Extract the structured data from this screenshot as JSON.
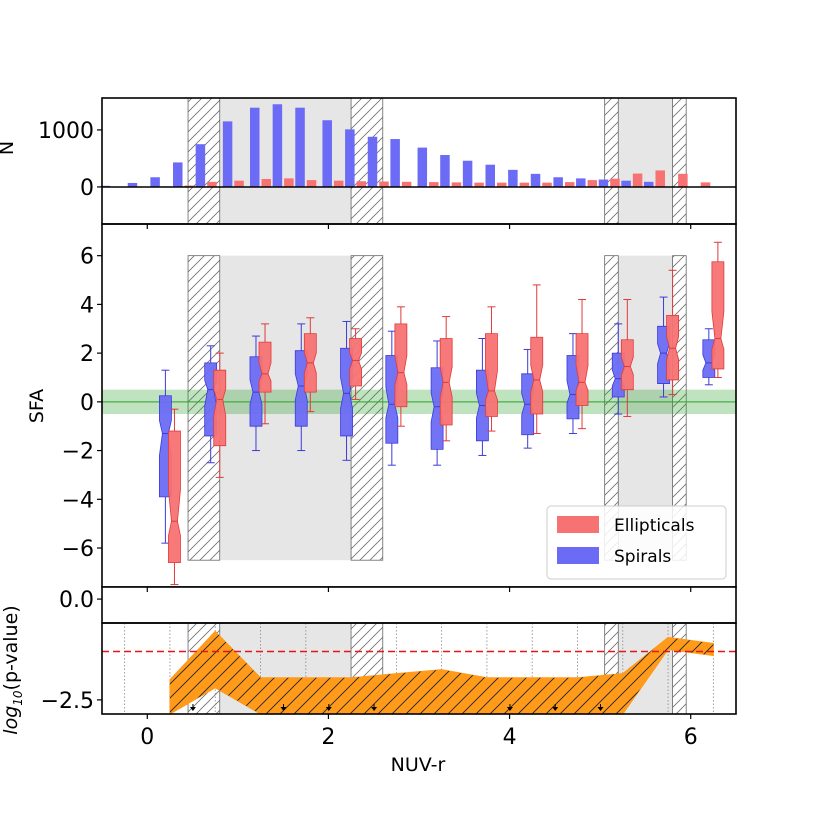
{
  "chart_data": [
    {
      "type": "bar",
      "panel": "top",
      "ylabel": "N",
      "ylim": [
        -650,
        1560
      ],
      "yticks": [
        "0",
        "1000"
      ],
      "x": [
        -0.4,
        -0.1,
        0.15,
        0.4,
        0.65,
        0.95,
        1.25,
        1.5,
        1.75,
        2.05,
        2.3,
        2.55,
        2.8,
        3.1,
        3.35,
        3.6,
        3.85,
        4.1,
        4.35,
        4.6,
        4.85,
        5.1,
        5.35,
        5.6,
        5.85,
        6.1
      ],
      "series": [
        {
          "name": "Spirals",
          "values": [
            20,
            70,
            170,
            430,
            750,
            1150,
            1390,
            1450,
            1390,
            1170,
            1010,
            880,
            840,
            690,
            560,
            460,
            390,
            300,
            230,
            170,
            150,
            130,
            110,
            90,
            0,
            0
          ]
        },
        {
          "name": "Ellipticals",
          "values": [
            0,
            0,
            10,
            25,
            90,
            110,
            140,
            150,
            120,
            110,
            100,
            95,
            90,
            85,
            80,
            75,
            75,
            75,
            75,
            85,
            120,
            145,
            235,
            290,
            230,
            80
          ]
        }
      ]
    },
    {
      "type": "box",
      "panel": "middle",
      "xlabel": "",
      "ylabel": "SFA",
      "ylim": [
        -7.6,
        7.3
      ],
      "yticks": [
        "6",
        "4",
        "2",
        "0",
        "−2",
        "−4",
        "−6"
      ],
      "band": {
        "center": 0,
        "halfwidth": 0.5,
        "color": "#2ca02c"
      },
      "series": [
        {
          "name": "Spirals",
          "color": "#6b6bf5",
          "boxes": [
            {
              "x": 0.2,
              "whislo": -5.8,
              "q1": -3.9,
              "med": -1.3,
              "q3": 0.25,
              "whishi": 1.3
            },
            {
              "x": 0.7,
              "whislo": -2.5,
              "q1": -1.4,
              "med": 0.5,
              "q3": 1.6,
              "whishi": 2.3
            },
            {
              "x": 1.2,
              "whislo": -2.0,
              "q1": -1.0,
              "med": 0.4,
              "q3": 1.85,
              "whishi": 2.7
            },
            {
              "x": 1.7,
              "whislo": -2.0,
              "q1": -1.0,
              "med": 0.65,
              "q3": 2.1,
              "whishi": 3.2
            },
            {
              "x": 2.2,
              "whislo": -2.4,
              "q1": -1.4,
              "med": 0.35,
              "q3": 2.2,
              "whishi": 3.3
            },
            {
              "x": 2.7,
              "whislo": -2.6,
              "q1": -1.7,
              "med": -0.1,
              "q3": 1.9,
              "whishi": 2.9
            },
            {
              "x": 3.2,
              "whislo": -2.6,
              "q1": -1.95,
              "med": -0.2,
              "q3": 1.4,
              "whishi": 2.5
            },
            {
              "x": 3.7,
              "whislo": -2.2,
              "q1": -1.6,
              "med": -0.15,
              "q3": 1.3,
              "whishi": 2.6
            },
            {
              "x": 4.2,
              "whislo": -1.9,
              "q1": -1.35,
              "med": -0.1,
              "q3": 1.15,
              "whishi": 2.15
            },
            {
              "x": 4.7,
              "whislo": -1.3,
              "q1": -0.7,
              "med": 0.3,
              "q3": 1.9,
              "whishi": 2.8
            },
            {
              "x": 5.2,
              "whislo": -0.5,
              "q1": 0.2,
              "med": 0.95,
              "q3": 2.0,
              "whishi": 3.2
            },
            {
              "x": 5.7,
              "whislo": 0.2,
              "q1": 0.75,
              "med": 2.0,
              "q3": 3.1,
              "whishi": 4.3
            },
            {
              "x": 6.2,
              "whislo": 0.7,
              "q1": 1.0,
              "med": 1.6,
              "q3": 2.55,
              "whishi": 3.0
            }
          ]
        },
        {
          "name": "Ellipticals",
          "color": "#f77272",
          "boxes": [
            {
              "x": 0.3,
              "whislo": -7.5,
              "q1": -6.6,
              "med": -4.9,
              "q3": -1.2,
              "whishi": -0.3
            },
            {
              "x": 0.8,
              "whislo": -3.1,
              "q1": -1.8,
              "med": 0.1,
              "q3": 1.3,
              "whishi": 2.0
            },
            {
              "x": 1.3,
              "whislo": -0.9,
              "q1": 0.4,
              "med": 1.15,
              "q3": 2.45,
              "whishi": 3.2
            },
            {
              "x": 1.8,
              "whislo": -0.4,
              "q1": 0.4,
              "med": 1.6,
              "q3": 2.8,
              "whishi": 3.45
            },
            {
              "x": 2.3,
              "whislo": 0.1,
              "q1": 0.65,
              "med": 1.7,
              "q3": 2.6,
              "whishi": 3.0
            },
            {
              "x": 2.8,
              "whislo": -1.0,
              "q1": -0.2,
              "med": 1.2,
              "q3": 3.2,
              "whishi": 3.9
            },
            {
              "x": 3.3,
              "whislo": -1.6,
              "q1": -0.95,
              "med": 0.8,
              "q3": 2.6,
              "whishi": 3.5
            },
            {
              "x": 3.8,
              "whislo": -1.2,
              "q1": -0.6,
              "med": 0.45,
              "q3": 2.8,
              "whishi": 3.9
            },
            {
              "x": 4.3,
              "whislo": -1.3,
              "q1": -0.5,
              "med": 0.9,
              "q3": 2.65,
              "whishi": 4.8
            },
            {
              "x": 4.8,
              "whislo": -1.1,
              "q1": -0.15,
              "med": 0.8,
              "q3": 2.8,
              "whishi": 4.2
            },
            {
              "x": 5.3,
              "whislo": -0.6,
              "q1": 0.5,
              "med": 1.45,
              "q3": 2.55,
              "whishi": 4.2
            },
            {
              "x": 5.8,
              "whislo": 0.3,
              "q1": 0.9,
              "med": 2.2,
              "q3": 3.55,
              "whishi": 5.4
            },
            {
              "x": 6.3,
              "whislo": 1.0,
              "q1": 1.35,
              "med": 2.6,
              "q3": 5.75,
              "whishi": 6.55
            }
          ]
        }
      ],
      "legend": {
        "position": "lower-right",
        "entries": [
          "Ellipticals",
          "Spirals"
        ]
      }
    },
    {
      "type": "area",
      "panel": "bottom",
      "xlabel": "NUV-r",
      "ylabel": "log10(p-value)",
      "ylabel_base": "log",
      "ylabel_sub": "10",
      "ylabel_rest": "(p-value)",
      "ylim": [
        -2.85,
        0.3
      ],
      "yticks": [
        "0.0",
        "−2.5"
      ],
      "threshold": -1.3,
      "x": [
        0.25,
        0.75,
        1.25,
        1.75,
        2.25,
        2.75,
        3.25,
        3.75,
        4.25,
        4.75,
        5.25,
        5.75,
        6.25
      ],
      "upper": [
        -2.0,
        -0.8,
        -1.95,
        -1.95,
        -1.95,
        -1.85,
        -1.75,
        -1.95,
        -1.95,
        -1.95,
        -1.85,
        -0.95,
        -1.1
      ],
      "lower": [
        -2.85,
        -2.2,
        -2.85,
        -2.85,
        -2.85,
        -2.85,
        -2.85,
        -2.85,
        -2.85,
        -2.85,
        -2.85,
        -1.25,
        -1.4
      ],
      "upper_limit_x": [
        0.25,
        1.25,
        1.75,
        2.25,
        3.75,
        4.25,
        4.75
      ],
      "xlim": [
        -0.5,
        6.5
      ],
      "xticks": [
        "0",
        "2",
        "4",
        "6"
      ]
    },
    {
      "type": "shaded_regions",
      "x_ranges": [
        {
          "hatch": [
            0.45,
            0.8
          ],
          "solid": [
            0.8,
            2.25
          ],
          "hatch_right": [
            2.25,
            2.6
          ]
        },
        {
          "hatch": [
            5.05,
            5.2
          ],
          "solid": [
            5.2,
            5.8
          ],
          "hatch_right": [
            5.8,
            5.95
          ]
        }
      ]
    }
  ]
}
